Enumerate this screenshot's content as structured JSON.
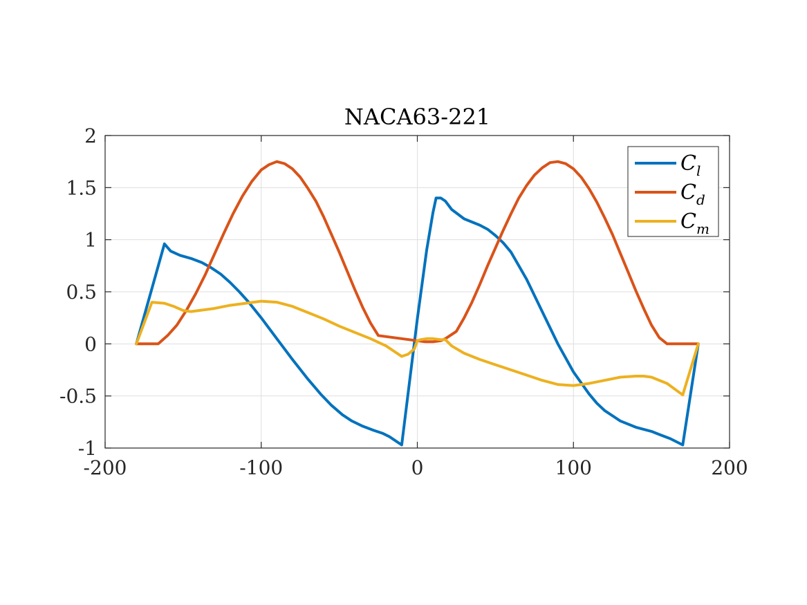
{
  "chart_data": {
    "type": "line",
    "title": "NACA63-221",
    "xlabel": "",
    "ylabel": "",
    "xlim": [
      -200,
      200
    ],
    "ylim": [
      -1,
      2
    ],
    "xticks": [
      "-200",
      "-100",
      "0",
      "100",
      "200"
    ],
    "yticks": [
      "-1",
      "-0.5",
      "0",
      "0.5",
      "1",
      "1.5",
      "2"
    ],
    "grid": true,
    "legend_position": "top-right",
    "series": [
      {
        "name": "C",
        "subscript": "l",
        "color": "#0072BD",
        "x": [
          -180,
          -162,
          -158,
          -152,
          -145,
          -138,
          -132,
          -126,
          -120,
          -114,
          -108,
          -100,
          -90,
          -80,
          -70,
          -62,
          -55,
          -48,
          -42,
          -35,
          -28,
          -22,
          -18,
          -10,
          0,
          6,
          10,
          12,
          15,
          18,
          22,
          30,
          40,
          45,
          50,
          55,
          60,
          70,
          80,
          90,
          100,
          110,
          115,
          120,
          130,
          140,
          150,
          155,
          162,
          170,
          180
        ],
        "y": [
          0,
          0.96,
          0.89,
          0.85,
          0.82,
          0.78,
          0.73,
          0.67,
          0.59,
          0.5,
          0.4,
          0.25,
          0.05,
          -0.15,
          -0.34,
          -0.48,
          -0.59,
          -0.68,
          -0.74,
          -0.79,
          -0.83,
          -0.86,
          -0.89,
          -0.97,
          0.24,
          0.9,
          1.26,
          1.4,
          1.4,
          1.37,
          1.29,
          1.2,
          1.14,
          1.1,
          1.04,
          0.97,
          0.88,
          0.62,
          0.31,
          0.0,
          -0.27,
          -0.48,
          -0.57,
          -0.64,
          -0.74,
          -0.8,
          -0.84,
          -0.87,
          -0.91,
          -0.97,
          0
        ]
      },
      {
        "name": "C",
        "subscript": "d",
        "color": "#D95319",
        "x": [
          -180,
          -166,
          -160,
          -154,
          -148,
          -142,
          -136,
          -130,
          -124,
          -118,
          -112,
          -106,
          -100,
          -95,
          -90,
          -85,
          -80,
          -75,
          -70,
          -65,
          -60,
          -55,
          -50,
          -45,
          -40,
          -35,
          -30,
          -25,
          -20,
          -15,
          -10,
          -5,
          0,
          5,
          10,
          15,
          18,
          25,
          30,
          35,
          40,
          45,
          50,
          55,
          60,
          65,
          70,
          75,
          80,
          85,
          90,
          95,
          100,
          105,
          110,
          115,
          120,
          125,
          130,
          135,
          140,
          145,
          150,
          155,
          160,
          165,
          170,
          175,
          180
        ],
        "y": [
          0,
          0,
          0.08,
          0.18,
          0.32,
          0.48,
          0.66,
          0.86,
          1.06,
          1.25,
          1.42,
          1.56,
          1.67,
          1.72,
          1.75,
          1.73,
          1.68,
          1.6,
          1.49,
          1.37,
          1.22,
          1.05,
          0.88,
          0.7,
          0.52,
          0.35,
          0.2,
          0.08,
          0.07,
          0.06,
          0.05,
          0.04,
          0.03,
          0.02,
          0.02,
          0.03,
          0.05,
          0.12,
          0.25,
          0.4,
          0.57,
          0.75,
          0.92,
          1.09,
          1.25,
          1.4,
          1.52,
          1.62,
          1.69,
          1.74,
          1.75,
          1.73,
          1.68,
          1.6,
          1.49,
          1.36,
          1.21,
          1.05,
          0.87,
          0.69,
          0.51,
          0.34,
          0.18,
          0.06,
          0,
          0,
          0,
          0,
          0
        ]
      },
      {
        "name": "C",
        "subscript": "m",
        "color": "#EDB120",
        "x": [
          -180,
          -170,
          -162,
          -156,
          -150,
          -145,
          -140,
          -130,
          -120,
          -110,
          -100,
          -90,
          -80,
          -70,
          -60,
          -50,
          -40,
          -30,
          -20,
          -15,
          -10,
          -6,
          -2,
          0,
          2,
          6,
          10,
          15,
          18,
          22,
          30,
          40,
          50,
          60,
          70,
          80,
          90,
          100,
          110,
          120,
          130,
          140,
          145,
          150,
          160,
          170,
          180
        ],
        "y": [
          0,
          0.4,
          0.39,
          0.36,
          0.32,
          0.31,
          0.32,
          0.34,
          0.37,
          0.39,
          0.41,
          0.4,
          0.36,
          0.3,
          0.24,
          0.17,
          0.11,
          0.05,
          -0.02,
          -0.07,
          -0.12,
          -0.1,
          -0.05,
          0.03,
          0.04,
          0.05,
          0.05,
          0.04,
          0.04,
          -0.02,
          -0.09,
          -0.15,
          -0.2,
          -0.25,
          -0.3,
          -0.35,
          -0.39,
          -0.4,
          -0.38,
          -0.35,
          -0.32,
          -0.31,
          -0.31,
          -0.32,
          -0.38,
          -0.49,
          0
        ]
      }
    ]
  }
}
